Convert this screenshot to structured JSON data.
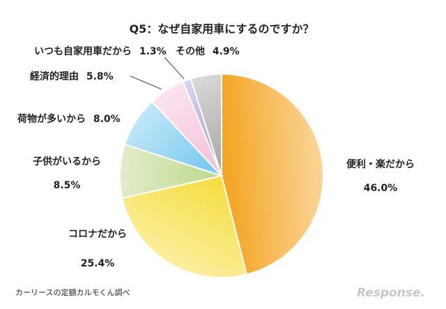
{
  "chart_data": {
    "type": "pie",
    "title": "Q5：なぜ自家用車にするのですか？",
    "slices": [
      {
        "name": "便利・楽だから",
        "value": 46.0,
        "value_label": "46.0%",
        "color": "#f4a31e"
      },
      {
        "name": "コロナだから",
        "value": 25.4,
        "value_label": "25.4%",
        "color": "#f6df45"
      },
      {
        "name": "子供がいるから",
        "value": 8.5,
        "value_label": "8.5%",
        "color": "#bcd88a"
      },
      {
        "name": "荷物が多いから",
        "value": 8.0,
        "value_label": "8.0%",
        "color": "#7ccbf0"
      },
      {
        "name": "経済的理由",
        "value": 5.8,
        "value_label": "5.8%",
        "color": "#f5c4dc"
      },
      {
        "name": "いつも自家用車だから",
        "value": 1.3,
        "value_label": "1.3%",
        "color": "#a79bd6"
      },
      {
        "name": "その他",
        "value": 4.9,
        "value_label": "4.9%",
        "color": "#a9a9a9"
      }
    ],
    "start_angle": "12 o'clock",
    "direction": "clockwise"
  },
  "source_note": "カーリースの定額カルモくん調べ",
  "watermark": "Response."
}
